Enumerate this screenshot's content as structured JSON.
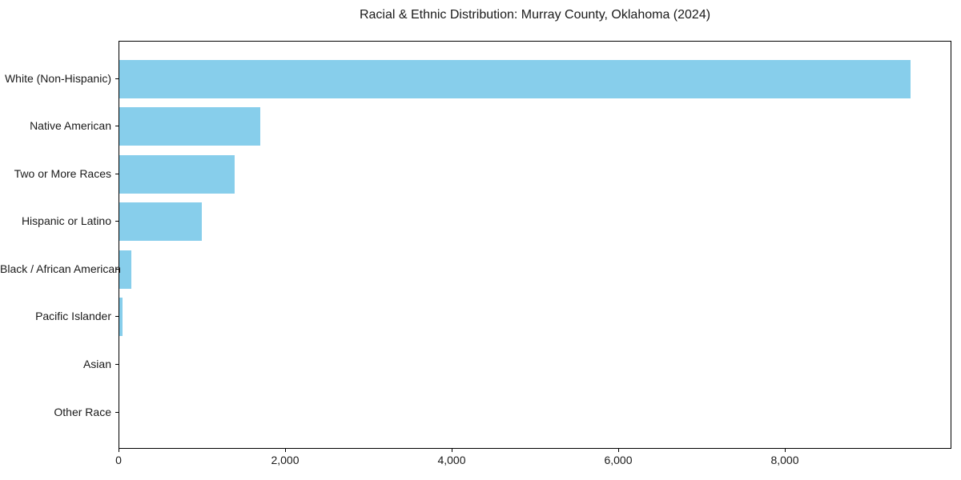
{
  "chart_data": {
    "type": "bar",
    "orientation": "horizontal",
    "title": "Racial & Ethnic Distribution: Murray County, Oklahoma (2024)",
    "xlabel": "",
    "ylabel": "",
    "categories": [
      "White (Non-Hispanic)",
      "Native American",
      "Two or More Races",
      "Hispanic or Latino",
      "Black / African American",
      "Pacific Islander",
      "Asian",
      "Other Race"
    ],
    "values": [
      9500,
      1690,
      1380,
      990,
      145,
      40,
      0,
      0
    ],
    "xlim": [
      0,
      10000
    ],
    "xticks": [
      0,
      2000,
      4000,
      6000,
      8000
    ],
    "xtick_labels": [
      "0",
      "2,000",
      "4,000",
      "6,000",
      "8,000"
    ],
    "bar_color": "#87CEEB",
    "axis_color": "#000000",
    "background_color": "#ffffff",
    "grid": false,
    "legend": "none"
  }
}
